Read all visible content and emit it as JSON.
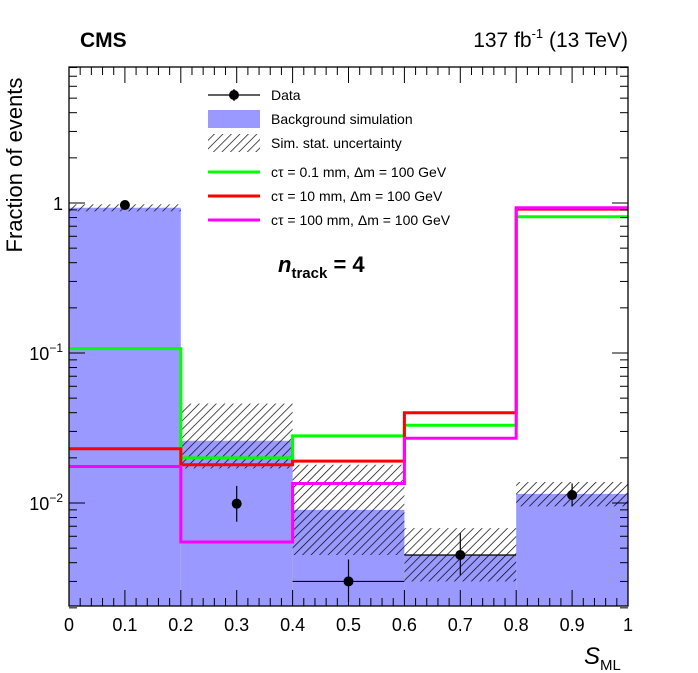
{
  "header": {
    "experiment": "CMS",
    "lumi": "137",
    "lumi_unit": "fb",
    "lumi_exponent": "-1",
    "energy": "(13 TeV)"
  },
  "chart_data": {
    "type": "histogram",
    "yscale": "log",
    "xlim": [
      0,
      1
    ],
    "ylim": [
      0.002,
      8
    ],
    "xlabel": "S",
    "xlabel_sub": "ML",
    "ylabel": "Fraction of events",
    "annotation": {
      "symbol": "n",
      "sub": "track",
      "value": "= 4"
    },
    "bin_edges": [
      0,
      0.2,
      0.4,
      0.6,
      0.8,
      1.0
    ],
    "x_ticks": [
      {
        "value": 0,
        "label": "0"
      },
      {
        "value": 0.1,
        "label": "0.1"
      },
      {
        "value": 0.2,
        "label": "0.2"
      },
      {
        "value": 0.3,
        "label": "0.3"
      },
      {
        "value": 0.4,
        "label": "0.4"
      },
      {
        "value": 0.5,
        "label": "0.5"
      },
      {
        "value": 0.6,
        "label": "0.6"
      },
      {
        "value": 0.7,
        "label": "0.7"
      },
      {
        "value": 0.8,
        "label": "0.8"
      },
      {
        "value": 0.9,
        "label": "0.9"
      },
      {
        "value": 1.0,
        "label": "1"
      }
    ],
    "y_ticks": [
      {
        "value": 1,
        "base": "1",
        "exp": ""
      },
      {
        "value": 0.1,
        "base": "10",
        "exp": "−1"
      },
      {
        "value": 0.01,
        "base": "10",
        "exp": "−2"
      }
    ],
    "background": {
      "name": "Background simulation",
      "color": "#9999ff",
      "values": [
        0.93,
        0.026,
        0.009,
        0.0045,
        0.0115
      ],
      "unc_low": [
        0.88,
        0.017,
        0.0045,
        0.003,
        0.0095
      ],
      "unc_high": [
        0.98,
        0.046,
        0.018,
        0.0068,
        0.0138
      ]
    },
    "uncertainty": {
      "name": "Sim. stat. uncertainty"
    },
    "data": {
      "name": "Data",
      "x": [
        0.1,
        0.3,
        0.5,
        0.7,
        0.9
      ],
      "y": [
        0.97,
        0.0099,
        0.003,
        0.0045,
        0.0113
      ],
      "yerr_low": [
        0.94,
        0.0075,
        0.0022,
        0.0033,
        0.0095
      ],
      "yerr_high": [
        1.0,
        0.013,
        0.0042,
        0.0063,
        0.0135
      ],
      "xerr": [
        0.0,
        0.0,
        0.1,
        0.1,
        0.0
      ]
    },
    "signals": [
      {
        "name": "cτ = 0.1 mm, Δm = 100 GeV",
        "color": "#00ff00",
        "values": [
          0.107,
          0.02,
          0.028,
          0.033,
          0.81
        ]
      },
      {
        "name": "cτ = 10 mm, Δm = 100 GeV",
        "color": "#ff0000",
        "values": [
          0.023,
          0.018,
          0.019,
          0.04,
          0.91
        ]
      },
      {
        "name": "cτ = 100 mm, Δm = 100 GeV",
        "color": "#ff00ff",
        "values": [
          0.0175,
          0.0055,
          0.0135,
          0.027,
          0.93
        ]
      }
    ]
  }
}
